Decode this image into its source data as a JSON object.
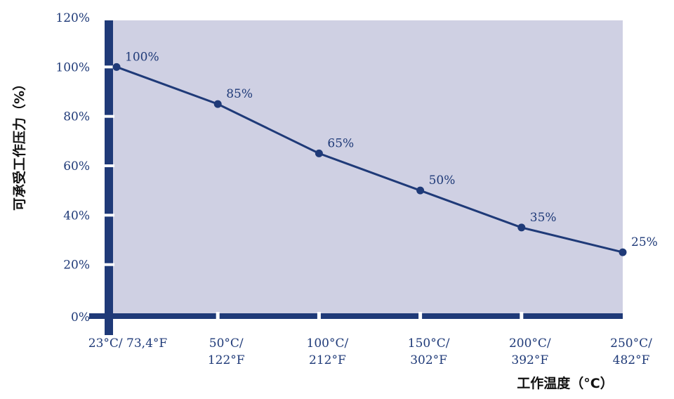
{
  "chart_data": {
    "type": "line",
    "title": "",
    "xlabel": "工作温度（°C）",
    "ylabel": "可承受工作压力（%）",
    "categories": [
      [
        "23°C/ 73,4°F"
      ],
      [
        "50°C/",
        "122°F"
      ],
      [
        "100°C/",
        "212°F"
      ],
      [
        "150°C/",
        "302°F"
      ],
      [
        "200°C/",
        "392°F"
      ],
      [
        "250°C/",
        "482°F"
      ]
    ],
    "series": [
      {
        "values": [
          100,
          85,
          65,
          50,
          35,
          25
        ]
      }
    ],
    "data_labels": [
      "100%",
      "85%",
      "65%",
      "50%",
      "35%",
      "25%"
    ],
    "y_ticks": [
      "0%",
      "20%",
      "40%",
      "60%",
      "80%",
      "100%",
      "120%"
    ],
    "ylim": [
      0,
      120
    ],
    "grid": false,
    "legend": "none",
    "colors": {
      "plot_background": "#cfd0e3",
      "line": "#1f3a78",
      "axis": "#1f3a78",
      "text": "#1f3a78"
    }
  }
}
